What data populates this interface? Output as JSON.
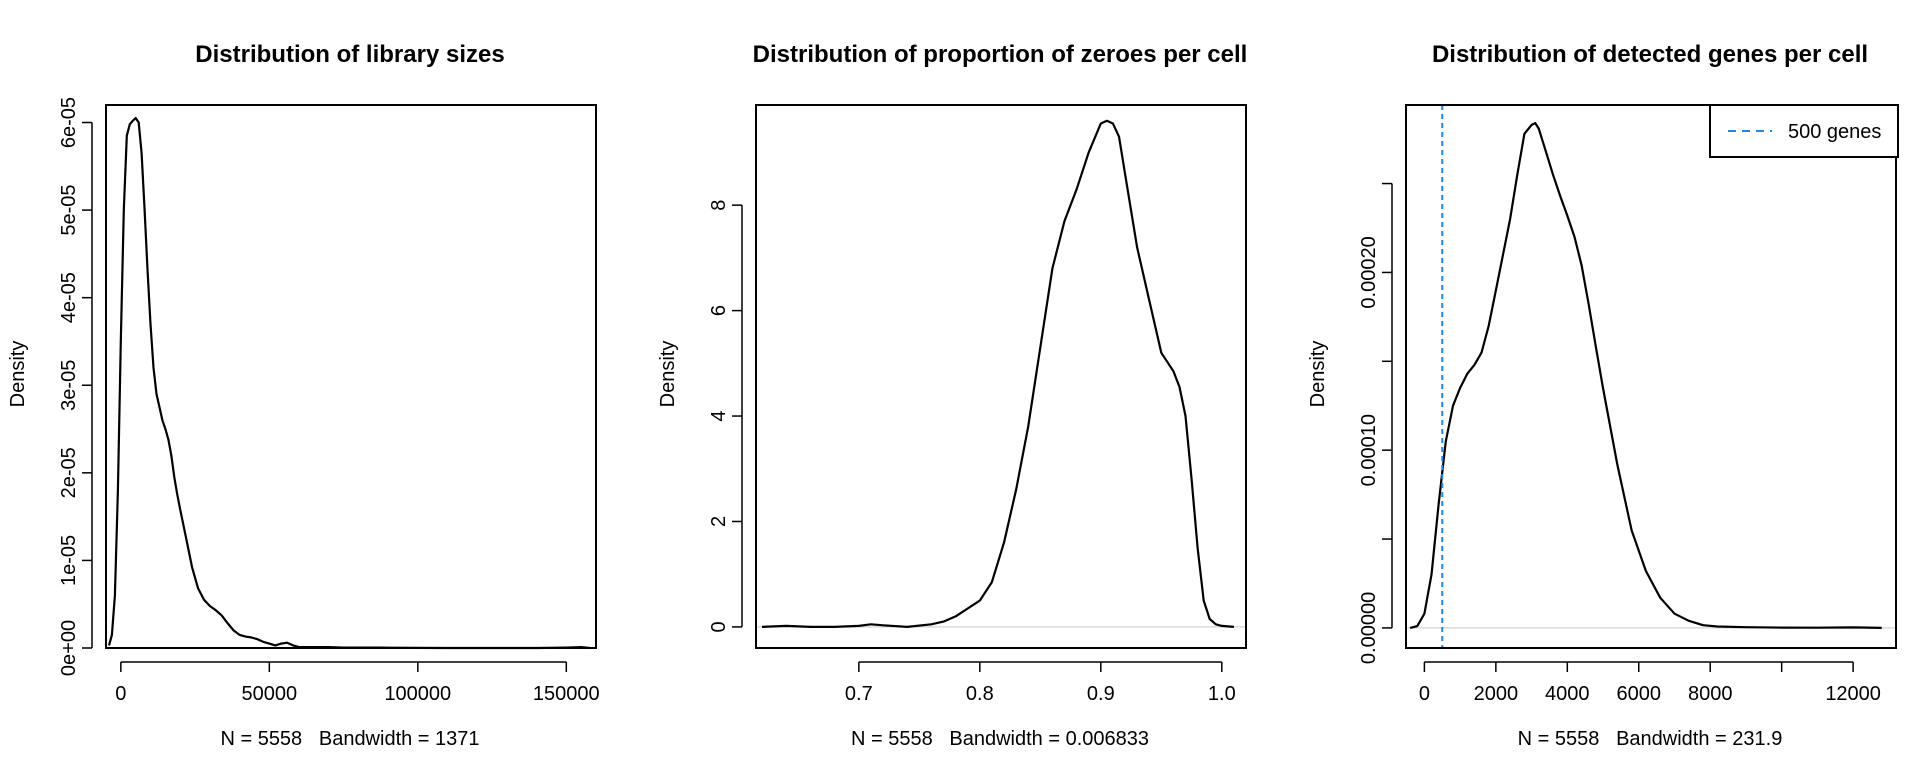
{
  "chart_data": [
    {
      "type": "line",
      "title": "Distribution of library sizes",
      "ylabel": "Density",
      "xlabel": "N = 5558   Bandwidth = 1371",
      "xlim": [
        -5000,
        160000
      ],
      "ylim": [
        0,
        6.2e-05
      ],
      "xticks": [
        0,
        50000,
        100000,
        150000
      ],
      "xtick_labels": [
        "0",
        "50000",
        "100000",
        "150000"
      ],
      "yticks": [
        0,
        1e-05,
        2e-05,
        3e-05,
        4e-05,
        5e-05,
        6e-05
      ],
      "ytick_labels": [
        "0e+00",
        "1e-05",
        "2e-05",
        "3e-05",
        "4e-05",
        "5e-05",
        "6e-05"
      ],
      "zero_line": false,
      "series": [
        {
          "name": "density",
          "x": [
            -4000,
            -3000,
            -2000,
            -1000,
            0,
            1000,
            2000,
            3000,
            4000,
            5000,
            6000,
            7000,
            8000,
            9000,
            10000,
            11000,
            12000,
            13000,
            14000,
            15000,
            16000,
            17000,
            18000,
            19000,
            20000,
            22000,
            24000,
            26000,
            28000,
            30000,
            32000,
            34000,
            36000,
            38000,
            40000,
            42000,
            44000,
            46000,
            48000,
            50000,
            52000,
            54000,
            56000,
            58000,
            60000,
            65000,
            70000,
            75000,
            80000,
            85000,
            90000,
            100000,
            110000,
            120000,
            130000,
            140000,
            150000,
            155000,
            158000
          ],
          "y": [
            3e-07,
            1.5e-06,
            6e-06,
            1.8e-05,
            3.5e-05,
            5e-05,
            5.85e-05,
            5.98e-05,
            6.02e-05,
            6.05e-05,
            6e-05,
            5.65e-05,
            5e-05,
            4.3e-05,
            3.7e-05,
            3.2e-05,
            2.9e-05,
            2.75e-05,
            2.6e-05,
            2.5e-05,
            2.38e-05,
            2.2e-05,
            1.95e-05,
            1.75e-05,
            1.58e-05,
            1.25e-05,
            9.2e-06,
            6.8e-06,
            5.5e-06,
            4.8e-06,
            4.3e-06,
            3.7e-06,
            2.8e-06,
            2e-06,
            1.5e-06,
            1.3e-06,
            1.2e-06,
            1e-06,
            7e-07,
            5e-07,
            3e-07,
            5e-07,
            6e-07,
            3e-07,
            1e-07,
            1e-07,
            1e-07,
            5e-08,
            5e-08,
            5e-08,
            3e-08,
            1e-08,
            0,
            0,
            0,
            0,
            5e-08,
            1e-07,
            0
          ]
        }
      ],
      "legend": null,
      "vlines": []
    },
    {
      "type": "line",
      "title": "Distribution of proportion of zeroes per cell",
      "ylabel": "Density",
      "xlabel": "N = 5558   Bandwidth = 0.006833",
      "xlim": [
        0.615,
        1.02
      ],
      "ylim": [
        -0.4,
        9.9
      ],
      "xticks": [
        0.7,
        0.8,
        0.9,
        1.0
      ],
      "xtick_labels": [
        "0.7",
        "0.8",
        "0.9",
        "1.0"
      ],
      "yticks": [
        0,
        2,
        4,
        6,
        8
      ],
      "ytick_labels": [
        "0",
        "2",
        "4",
        "6",
        "8"
      ],
      "zero_line": true,
      "series": [
        {
          "name": "density",
          "x": [
            0.62,
            0.64,
            0.66,
            0.68,
            0.7,
            0.71,
            0.72,
            0.74,
            0.76,
            0.77,
            0.78,
            0.79,
            0.8,
            0.81,
            0.82,
            0.83,
            0.84,
            0.85,
            0.86,
            0.87,
            0.88,
            0.89,
            0.9,
            0.905,
            0.91,
            0.915,
            0.92,
            0.93,
            0.94,
            0.95,
            0.96,
            0.965,
            0.97,
            0.975,
            0.98,
            0.985,
            0.99,
            0.995,
            1.0,
            1.01
          ],
          "y": [
            0.0,
            0.02,
            0.0,
            0.0,
            0.02,
            0.05,
            0.03,
            0.0,
            0.05,
            0.1,
            0.2,
            0.35,
            0.5,
            0.85,
            1.6,
            2.6,
            3.8,
            5.3,
            6.8,
            7.7,
            8.3,
            9.0,
            9.55,
            9.6,
            9.55,
            9.3,
            8.6,
            7.2,
            6.2,
            5.2,
            4.85,
            4.55,
            4.0,
            2.8,
            1.5,
            0.5,
            0.15,
            0.05,
            0.02,
            0.0
          ]
        }
      ],
      "legend": null,
      "vlines": []
    },
    {
      "type": "line",
      "title": "Distribution of detected genes per cell",
      "ylabel": "Density",
      "xlabel": "N = 5558   Bandwidth = 231.9",
      "xlim": [
        -515,
        13200
      ],
      "ylim": [
        -1.13e-05,
        0.0002942
      ],
      "xticks": [
        0,
        2000,
        4000,
        6000,
        8000,
        10000,
        12000
      ],
      "xtick_labels": [
        "0",
        "2000",
        "4000",
        "6000",
        "8000",
        "",
        "12000"
      ],
      "yticks": [
        0,
        5e-05,
        0.0001,
        0.00015,
        0.0002,
        0.00025
      ],
      "ytick_labels": [
        "0.00000",
        "",
        "0.00010",
        "",
        "0.00020",
        ""
      ],
      "zero_line": true,
      "series": [
        {
          "name": "density",
          "x": [
            -400,
            -200,
            0,
            200,
            400,
            600,
            800,
            1000,
            1200,
            1400,
            1600,
            1800,
            2000,
            2200,
            2400,
            2600,
            2800,
            3000,
            3100,
            3200,
            3400,
            3600,
            3800,
            4000,
            4200,
            4400,
            4600,
            4800,
            5000,
            5400,
            5800,
            6200,
            6600,
            7000,
            7400,
            7800,
            8200,
            9000,
            10000,
            11000,
            12000,
            12800
          ],
          "y": [
            0.0,
            1e-06,
            8e-06,
            3e-05,
            7e-05,
            0.000105,
            0.000125,
            0.000135,
            0.000143,
            0.000148,
            0.000155,
            0.00017,
            0.00019,
            0.00021,
            0.00023,
            0.000255,
            0.000278,
            0.000283,
            0.000284,
            0.000281,
            0.000268,
            0.000255,
            0.000243,
            0.000232,
            0.00022,
            0.000204,
            0.000182,
            0.000158,
            0.000135,
            9.2e-05,
            5.5e-05,
            3.2e-05,
            1.7e-05,
            8e-06,
            4e-06,
            1.5e-06,
            8e-07,
            4e-07,
            2e-07,
            1e-07,
            3e-07,
            0.0
          ],
          "color": "#000000"
        }
      ],
      "legend": {
        "placement": "top-right",
        "label": "500 genes",
        "color": "#1e88e5",
        "style": "dashed"
      },
      "vlines": [
        {
          "x": 500,
          "color": "#1e88e5",
          "style": "dashed",
          "label": "500 genes"
        }
      ]
    }
  ]
}
